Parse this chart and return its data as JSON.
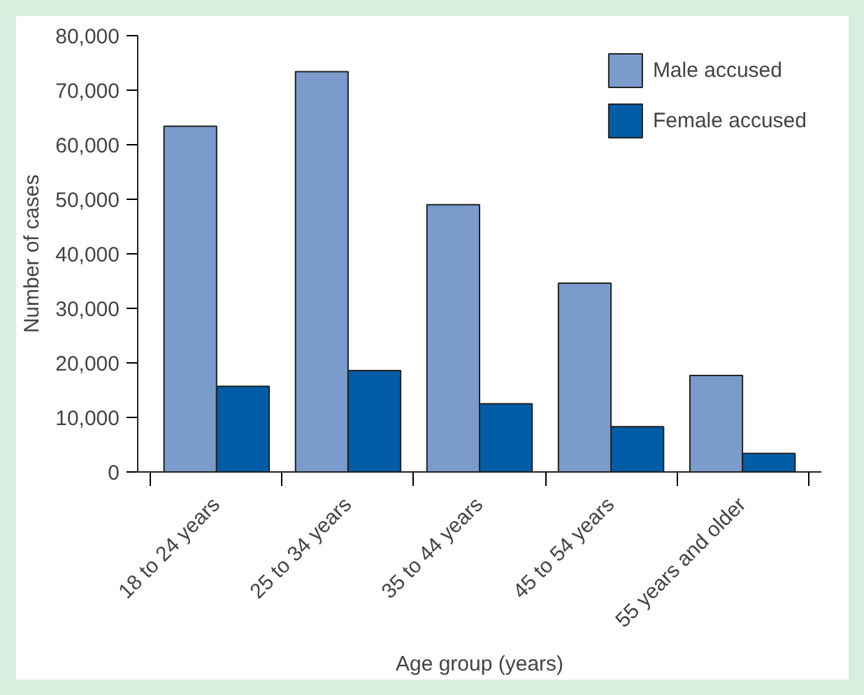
{
  "chart_data": {
    "type": "bar",
    "xlabel": "Age group (years)",
    "ylabel": "Number of cases",
    "categories": [
      "18 to 24 years",
      "25 to 34 years",
      "35 to 44 years",
      "45 to 54 years",
      "55 years and older"
    ],
    "series": [
      {
        "name": "Male accused",
        "color": "#7b9bcc",
        "values": [
          63400,
          73400,
          49000,
          34600,
          17700
        ]
      },
      {
        "name": "Female accused",
        "color": "#005da6",
        "values": [
          15700,
          18600,
          12500,
          8300,
          3400
        ]
      }
    ],
    "ylim": [
      0,
      80000
    ],
    "yticks": [
      {
        "value": 0,
        "label": "0"
      },
      {
        "value": 10000,
        "label": "10,000"
      },
      {
        "value": 20000,
        "label": "20,000"
      },
      {
        "value": 30000,
        "label": "30,000"
      },
      {
        "value": 40000,
        "label": "40,000"
      },
      {
        "value": 50000,
        "label": "50,000"
      },
      {
        "value": 60000,
        "label": "60,000"
      },
      {
        "value": 70000,
        "label": "70,000"
      },
      {
        "value": 80000,
        "label": "80,000"
      }
    ],
    "legend": "top right"
  }
}
